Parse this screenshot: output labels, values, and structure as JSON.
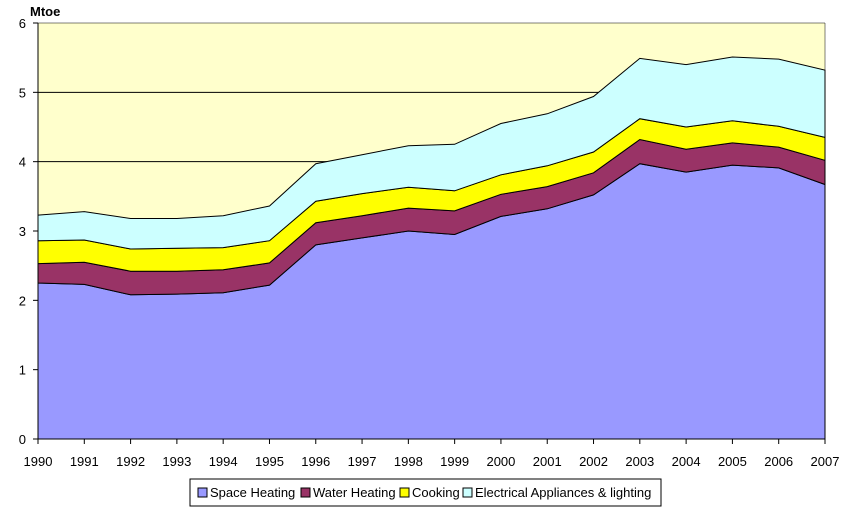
{
  "chart_data": {
    "type": "area",
    "stacked": true,
    "unit_label": "Mtoe",
    "x": [
      "1990",
      "1991",
      "1992",
      "1993",
      "1994",
      "1995",
      "1996",
      "1997",
      "1998",
      "1999",
      "2000",
      "2001",
      "2002",
      "2003",
      "2004",
      "2005",
      "2006",
      "2007"
    ],
    "ylim": [
      0,
      6
    ],
    "yticks": [
      "0",
      "1",
      "2",
      "3",
      "4",
      "5",
      "6"
    ],
    "grid": true,
    "legend_position": "bottom",
    "series": [
      {
        "name": "Space Heating",
        "color": "#9999ff",
        "values": [
          2.25,
          2.23,
          2.08,
          2.09,
          2.11,
          2.22,
          2.8,
          2.9,
          3.0,
          2.95,
          3.21,
          3.32,
          3.52,
          3.97,
          3.85,
          3.95,
          3.91,
          3.67
        ]
      },
      {
        "name": "Water Heating",
        "color": "#993366",
        "values": [
          0.28,
          0.32,
          0.34,
          0.33,
          0.33,
          0.32,
          0.32,
          0.32,
          0.33,
          0.34,
          0.32,
          0.32,
          0.32,
          0.35,
          0.33,
          0.32,
          0.3,
          0.35
        ]
      },
      {
        "name": "Cooking",
        "color": "#ffff00",
        "values": [
          0.33,
          0.32,
          0.32,
          0.33,
          0.32,
          0.32,
          0.31,
          0.32,
          0.3,
          0.29,
          0.28,
          0.3,
          0.3,
          0.3,
          0.32,
          0.32,
          0.3,
          0.33
        ]
      },
      {
        "name": "Electrical Appliances & lighting",
        "color": "#ccffff",
        "values": [
          0.37,
          0.41,
          0.44,
          0.43,
          0.46,
          0.5,
          0.54,
          0.56,
          0.6,
          0.67,
          0.74,
          0.75,
          0.8,
          0.87,
          0.9,
          0.92,
          0.97,
          0.97
        ]
      }
    ]
  },
  "plot_bg": "#ffffcc",
  "line_color": "#000000"
}
